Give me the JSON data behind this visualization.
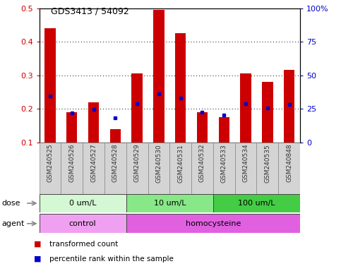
{
  "title": "GDS3413 / 54092",
  "samples": [
    "GSM240525",
    "GSM240526",
    "GSM240527",
    "GSM240528",
    "GSM240529",
    "GSM240530",
    "GSM240531",
    "GSM240532",
    "GSM240533",
    "GSM240534",
    "GSM240535",
    "GSM240848"
  ],
  "transformed_count": [
    0.44,
    0.19,
    0.22,
    0.14,
    0.305,
    0.495,
    0.425,
    0.19,
    0.175,
    0.305,
    0.28,
    0.315
  ],
  "percentile_rank_left": [
    0.237,
    0.188,
    0.198,
    0.172,
    0.215,
    0.245,
    0.232,
    0.19,
    0.182,
    0.215,
    0.202,
    0.212
  ],
  "ylim_left": [
    0.1,
    0.5
  ],
  "ylim_right": [
    0,
    100
  ],
  "yticks_left": [
    0.1,
    0.2,
    0.3,
    0.4,
    0.5
  ],
  "ytick_labels_left": [
    "0.1",
    "0.2",
    "0.3",
    "0.4",
    "0.5"
  ],
  "yticks_right": [
    0,
    25,
    50,
    75,
    100
  ],
  "ytick_labels_right": [
    "0",
    "25",
    "50",
    "75",
    "100%"
  ],
  "dose_groups": [
    {
      "label": "0 um/L",
      "start": 0,
      "end": 4,
      "color": "#d4f7d4"
    },
    {
      "label": "10 um/L",
      "start": 4,
      "end": 8,
      "color": "#88e888"
    },
    {
      "label": "100 um/L",
      "start": 8,
      "end": 12,
      "color": "#44cc44"
    }
  ],
  "agent_groups": [
    {
      "label": "control",
      "start": 0,
      "end": 4,
      "color": "#f0a0f0"
    },
    {
      "label": "homocysteine",
      "start": 4,
      "end": 12,
      "color": "#e060e0"
    }
  ],
  "bar_color": "#cc0000",
  "dot_color": "#0000cc",
  "bar_width": 0.5,
  "background_color": "#ffffff",
  "plot_bg_color": "#ffffff",
  "legend_items": [
    {
      "color": "#cc0000",
      "label": "transformed count"
    },
    {
      "color": "#0000cc",
      "label": "percentile rank within the sample"
    }
  ]
}
